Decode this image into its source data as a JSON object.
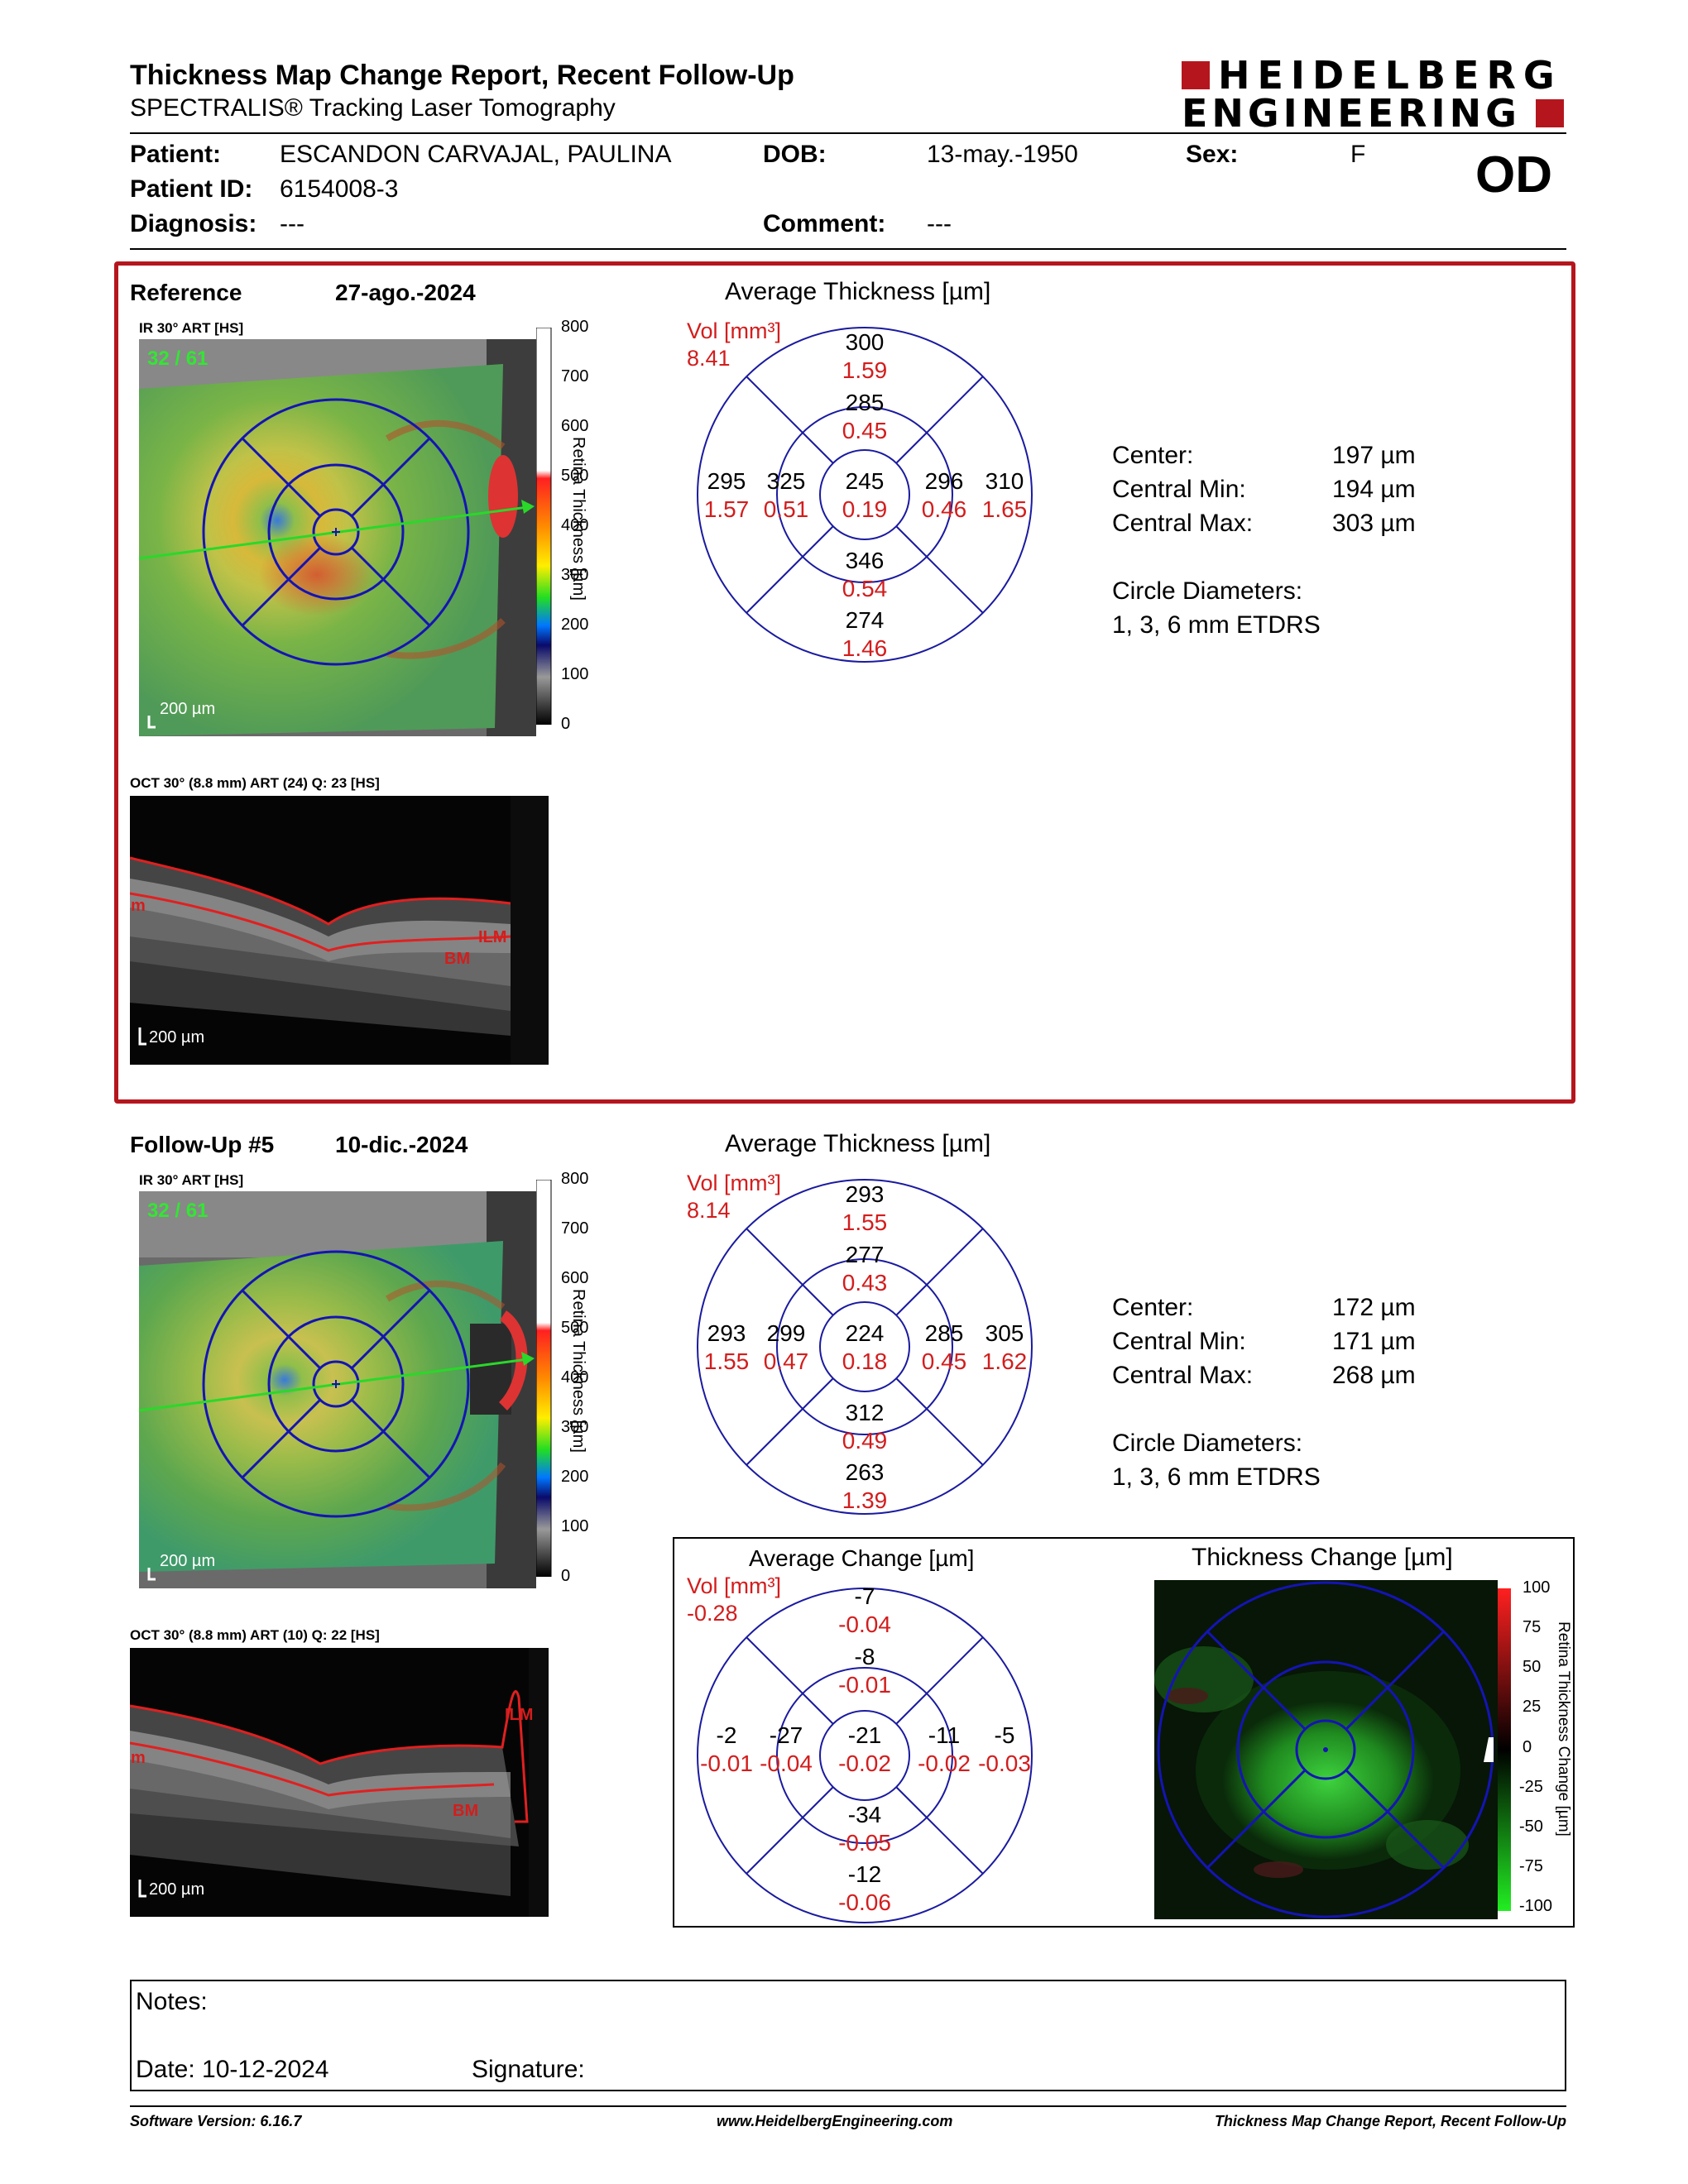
{
  "header": {
    "title": "Thickness Map Change Report, Recent Follow-Up",
    "subtitle": "SPECTRALIS® Tracking Laser Tomography",
    "logo_line1": "HEIDELBERG",
    "logo_line2": "ENGINEERING",
    "eye": "OD",
    "brand_color": "#b5161e"
  },
  "patient": {
    "patient_label": "Patient:",
    "patient_value": "ESCANDON CARVAJAL, PAULINA",
    "dob_label": "DOB:",
    "dob_value": "13-may.-1950",
    "sex_label": "Sex:",
    "sex_value": "F",
    "id_label": "Patient ID:",
    "id_value": "6154008-3",
    "diagnosis_label": "Diagnosis:",
    "diagnosis_value": "---",
    "comment_label": "Comment:",
    "comment_value": "---"
  },
  "reference": {
    "label": "Reference",
    "date": "27-ago.-2024",
    "ir_caption": "IR 30° ART [HS]",
    "frame_count": "32 / 61",
    "scale_text": "200 µm",
    "oct_caption": "OCT 30° (8.8 mm) ART (24) Q: 23 [HS]",
    "oct_scale": "200 µm",
    "colorbar_title": "Retina Thickness [µm]",
    "colorbar_ticks": [
      "800",
      "700",
      "600",
      "500",
      "400",
      "300",
      "200",
      "100",
      "0"
    ],
    "grid_title": "Average Thickness [µm]",
    "vol_label": "Vol [mm³]",
    "vol_total": "8.41",
    "sectors": {
      "outer_top": {
        "t": "300",
        "v": "1.59"
      },
      "inner_top": {
        "t": "285",
        "v": "0.45"
      },
      "outer_left": {
        "t": "295",
        "v": "1.57"
      },
      "inner_left": {
        "t": "325",
        "v": "0.51"
      },
      "center": {
        "t": "245",
        "v": "0.19"
      },
      "inner_right": {
        "t": "296",
        "v": "0.46"
      },
      "outer_right": {
        "t": "310",
        "v": "1.65"
      },
      "inner_bottom": {
        "t": "346",
        "v": "0.54"
      },
      "outer_bottom": {
        "t": "274",
        "v": "1.46"
      }
    },
    "stats": {
      "center_label": "Center:",
      "center_value": "197 µm",
      "min_label": "Central Min:",
      "min_value": "194 µm",
      "max_label": "Central Max:",
      "max_value": "303 µm",
      "circles_label": "Circle Diameters:",
      "circles_value": "1, 3, 6 mm ETDRS"
    },
    "ilm": "ILM",
    "bm": "BM",
    "m": "m"
  },
  "followup": {
    "label": "Follow-Up #5",
    "date": "10-dic.-2024",
    "ir_caption": "IR 30° ART [HS]",
    "frame_count": "32 / 61",
    "scale_text": "200 µm",
    "oct_caption": "OCT 30° (8.8 mm) ART (10) Q: 22 [HS]",
    "oct_scale": "200 µm",
    "colorbar_title": "Retina Thickness [µm]",
    "colorbar_ticks": [
      "800",
      "700",
      "600",
      "500",
      "400",
      "300",
      "200",
      "100",
      "0"
    ],
    "grid_title": "Average Thickness [µm]",
    "vol_label": "Vol [mm³]",
    "vol_total": "8.14",
    "sectors": {
      "outer_top": {
        "t": "293",
        "v": "1.55"
      },
      "inner_top": {
        "t": "277",
        "v": "0.43"
      },
      "outer_left": {
        "t": "293",
        "v": "1.55"
      },
      "inner_left": {
        "t": "299",
        "v": "0.47"
      },
      "center": {
        "t": "224",
        "v": "0.18"
      },
      "inner_right": {
        "t": "285",
        "v": "0.45"
      },
      "outer_right": {
        "t": "305",
        "v": "1.62"
      },
      "inner_bottom": {
        "t": "312",
        "v": "0.49"
      },
      "outer_bottom": {
        "t": "263",
        "v": "1.39"
      }
    },
    "stats": {
      "center_label": "Center:",
      "center_value": "172 µm",
      "min_label": "Central Min:",
      "min_value": "171 µm",
      "max_label": "Central Max:",
      "max_value": "268 µm",
      "circles_label": "Circle Diameters:",
      "circles_value": "1, 3, 6 mm ETDRS"
    },
    "ilm": "ILM",
    "bm": "BM",
    "m": "m"
  },
  "change": {
    "grid_title": "Average Change [µm]",
    "vol_label": "Vol [mm³]",
    "vol_total": "-0.28",
    "sectors": {
      "outer_top": {
        "t": "-7",
        "v": "-0.04"
      },
      "inner_top": {
        "t": "-8",
        "v": "-0.01"
      },
      "outer_left": {
        "t": "-2",
        "v": "-0.01"
      },
      "inner_left": {
        "t": "-27",
        "v": "-0.04"
      },
      "center": {
        "t": "-21",
        "v": "-0.02"
      },
      "inner_right": {
        "t": "-11",
        "v": "-0.02"
      },
      "outer_right": {
        "t": "-5",
        "v": "-0.03"
      },
      "inner_bottom": {
        "t": "-34",
        "v": "-0.05"
      },
      "outer_bottom": {
        "t": "-12",
        "v": "-0.06"
      }
    },
    "map_title": "Thickness Change [µm]",
    "colorbar_title": "Retina Thickness Change [µm]",
    "colorbar_ticks": [
      "100",
      "75",
      "50",
      "25",
      "0",
      "-25",
      "-50",
      "-75",
      "-100"
    ]
  },
  "notes": {
    "notes_label": "Notes:",
    "date_label": "Date: 10-12-2024",
    "signature_label": "Signature:"
  },
  "footer": {
    "software": "Software Version: 6.16.7",
    "website": "www.HeidelbergEngineering.com",
    "report_name": "Thickness Map Change Report, Recent Follow-Up"
  }
}
